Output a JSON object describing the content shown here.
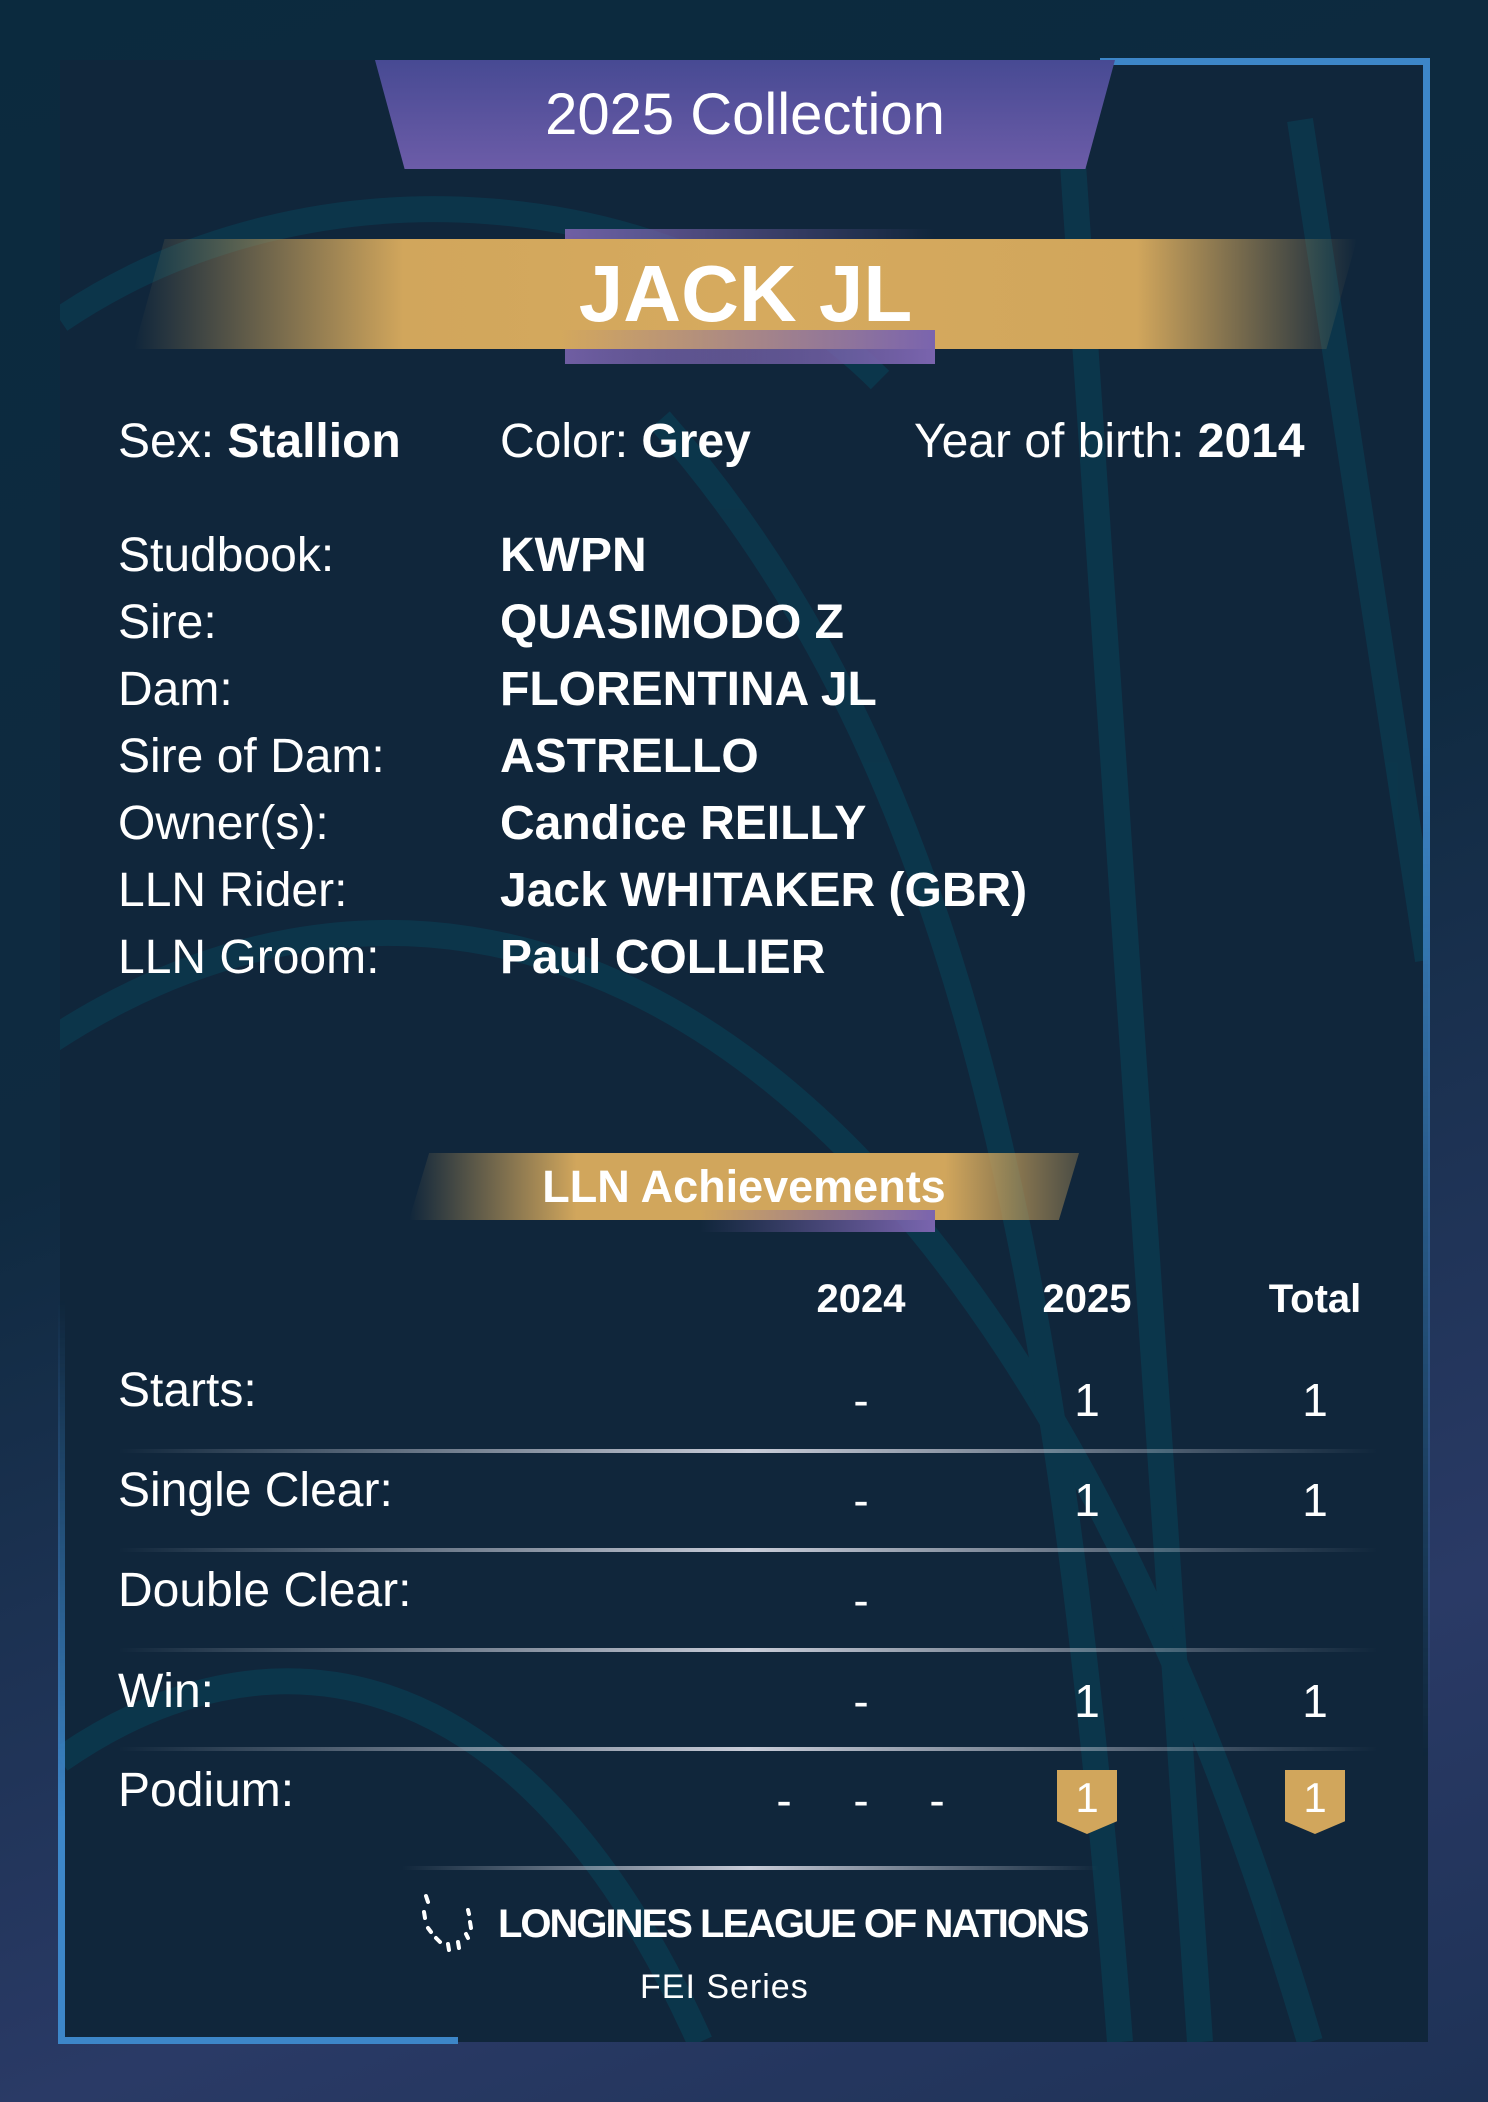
{
  "header": {
    "collection": "2025 Collection",
    "horse_name": "JACK JL"
  },
  "summary": {
    "sex_label": "Sex:",
    "sex": "Stallion",
    "color_label": "Color:",
    "color": "Grey",
    "yob_label": "Year of birth:",
    "yob": "2014"
  },
  "details": [
    {
      "label": "Studbook:",
      "value": "KWPN"
    },
    {
      "label": "Sire:",
      "value": "QUASIMODO Z"
    },
    {
      "label": "Dam:",
      "value": "FLORENTINA JL"
    },
    {
      "label": "Sire of Dam:",
      "value": "ASTRELLO"
    },
    {
      "label": "Owner(s):",
      "value": "Candice REILLY"
    },
    {
      "label": "LLN Rider:",
      "value": "Jack WHITAKER (GBR)"
    },
    {
      "label": "LLN Groom:",
      "value": "Paul COLLIER"
    }
  ],
  "achievements": {
    "title": "LLN Achievements",
    "columns": [
      "2024",
      "2025",
      "Total"
    ],
    "rows": [
      {
        "label": "Starts:",
        "values": [
          "-",
          "1",
          "1"
        ]
      },
      {
        "label": "Single Clear:",
        "values": [
          "-",
          "1",
          "1"
        ]
      },
      {
        "label": "Double Clear:",
        "values": [
          "-",
          "",
          ""
        ]
      },
      {
        "label": "Win:",
        "values": [
          "-",
          "1",
          "1"
        ]
      },
      {
        "label": "Podium:",
        "dashes": [
          "-",
          "-",
          "-"
        ],
        "values": [
          "1",
          "1"
        ]
      }
    ]
  },
  "footer": {
    "logo": "LONGINES LEAGUE OF NATIONS",
    "series": "FEI Series"
  },
  "colors": {
    "gold": "#d1a65c",
    "purple": "#5d55a2",
    "frame": "#3d86c8",
    "background": "#10263b"
  }
}
